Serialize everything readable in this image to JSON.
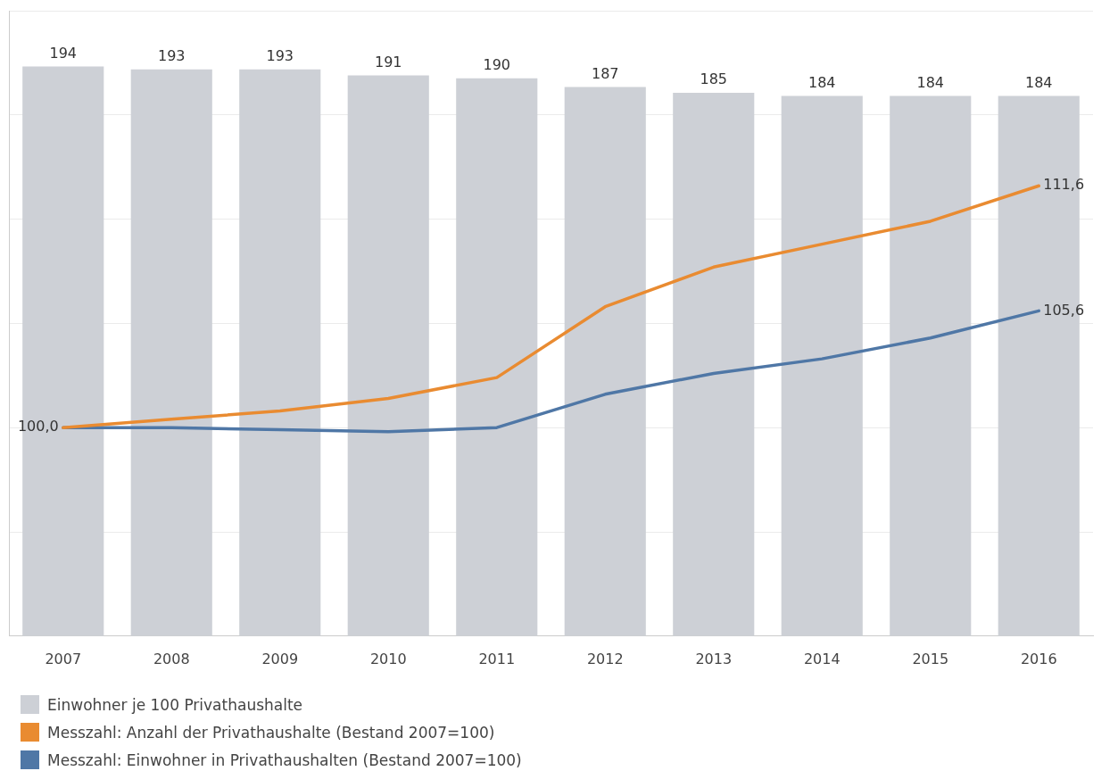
{
  "chart_data": {
    "type": "bar",
    "categories": [
      "2007",
      "2008",
      "2009",
      "2010",
      "2011",
      "2012",
      "2013",
      "2014",
      "2015",
      "2016"
    ],
    "series": [
      {
        "name": "Einwohner je 100 Privathaushalte",
        "color": "#cdd0d6",
        "values": [
          194,
          193,
          193,
          191,
          190,
          187,
          185,
          184,
          184,
          184
        ],
        "value_labels": [
          "194",
          "193",
          "193",
          "191",
          "190",
          "187",
          "185",
          "184",
          "184",
          "184"
        ]
      },
      {
        "name": "Messzahl: Anzahl der Privathaushalte (Bestand 2007=100)",
        "type": "line",
        "axis": "y2",
        "color": "#e98b31",
        "values": [
          100.0,
          100.4,
          100.8,
          101.4,
          102.4,
          105.8,
          107.7,
          108.8,
          109.9,
          111.6
        ],
        "value_labels": [
          "100,0",
          null,
          null,
          null,
          null,
          null,
          null,
          null,
          null,
          "111,6"
        ]
      },
      {
        "name": "Messzahl: Einwohner in Privathaushalten (Bestand 2007=100)",
        "type": "line",
        "axis": "y2",
        "color": "#4f77a6",
        "values": [
          100.0,
          100.0,
          99.9,
          99.8,
          100.0,
          101.6,
          102.6,
          103.3,
          104.3,
          105.6
        ],
        "value_labels": [
          null,
          null,
          null,
          null,
          null,
          null,
          null,
          null,
          null,
          "105,6"
        ]
      }
    ],
    "ylim": [
      0,
      213
    ],
    "y2lim": [
      90,
      120
    ],
    "y2ticks": [
      {
        "value": 90,
        "label": null
      },
      {
        "value": 95,
        "label": null
      },
      {
        "value": 100,
        "label": null
      },
      {
        "value": 105,
        "label": null
      },
      {
        "value": 110,
        "label": null
      },
      {
        "value": 115,
        "label": null
      },
      {
        "value": 120,
        "label": null
      }
    ],
    "grid": "y",
    "tick_labels": "x",
    "legend": "bottom left",
    "marker": "none",
    "line_style": "solid"
  }
}
